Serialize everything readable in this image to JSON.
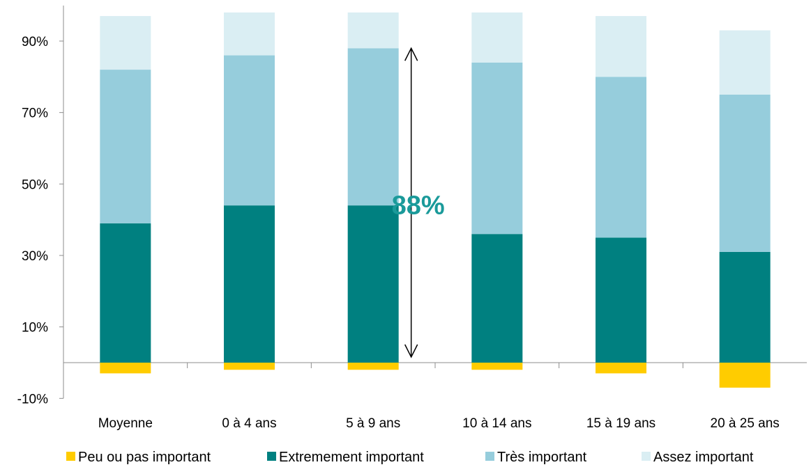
{
  "chart_data": {
    "type": "bar",
    "stacked": true,
    "categories": [
      "Moyenne",
      "0 à 4 ans",
      "5 à 9 ans",
      "10 à 14 ans",
      "15 à 19 ans",
      "20 à 25 ans"
    ],
    "series": [
      {
        "name": "Peu ou pas important",
        "color": "#FFCC00",
        "values": [
          -3,
          -2,
          -2,
          -2,
          -3,
          -7
        ]
      },
      {
        "name": "Extremement important",
        "color": "#008080",
        "values": [
          39,
          44,
          44,
          36,
          35,
          31
        ]
      },
      {
        "name": "Très important",
        "color": "#96CDDC",
        "values": [
          43,
          42,
          44,
          48,
          45,
          44
        ]
      },
      {
        "name": "Assez important",
        "color": "#DAEEF3",
        "values": [
          15,
          12,
          10,
          14,
          17,
          18
        ]
      }
    ],
    "yticks": [
      "-10%",
      "10%",
      "30%",
      "50%",
      "70%",
      "90%"
    ],
    "ytick_values": [
      -10,
      10,
      30,
      50,
      70,
      90
    ],
    "ylim": [
      -10,
      100
    ],
    "legend_position": "bottom",
    "annotation": {
      "text": "88%",
      "category": "5 à 9 ans",
      "from": 0,
      "to": 88,
      "color": "#1A9A9A"
    }
  }
}
